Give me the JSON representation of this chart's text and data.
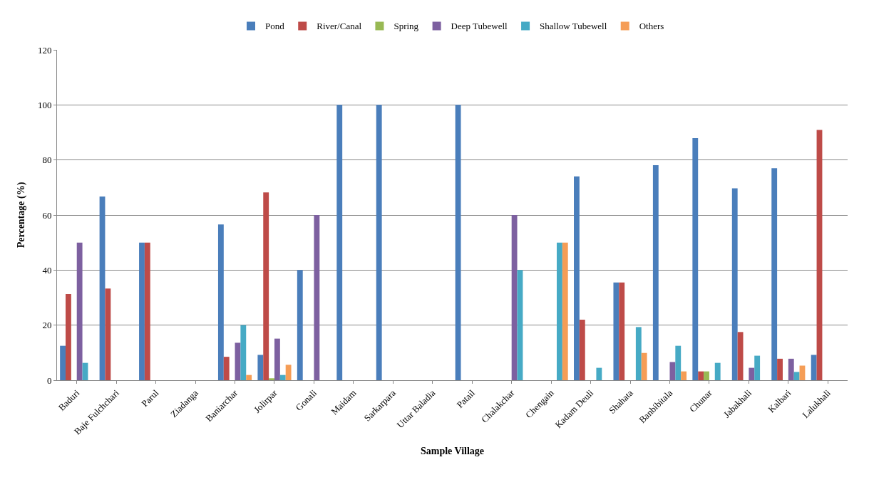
{
  "chart_data": {
    "type": "bar",
    "xlabel": "Sample Village",
    "ylabel": "Percentage (%)",
    "categories": [
      "Baduri",
      "Baje Fulchchari",
      "Parul",
      "Ziadanga",
      "Baniarchar",
      "Jolirpar",
      "Gonali",
      "Maidam",
      "Sarkarpara",
      "Uttar Baladia",
      "Patail",
      "Chalakchar",
      "Chengain",
      "Kadam Deuli",
      "Shahata",
      "Banbibitala",
      "Chunar",
      "Jabakhali",
      "Kalbari",
      "Lalukhali"
    ],
    "series": [
      {
        "name": "Pond",
        "color": "#4a7ebb",
        "values": [
          12.5,
          66.7,
          50,
          0,
          56.6,
          9.2,
          40,
          100,
          100,
          0,
          100,
          0,
          0,
          74,
          35.5,
          78.1,
          87.9,
          69.7,
          77,
          9.2
        ]
      },
      {
        "name": "River/Canal",
        "color": "#be4b48",
        "values": [
          31.3,
          33.3,
          50,
          0,
          8.5,
          68.2,
          0,
          0,
          0,
          0,
          0,
          0,
          0,
          22,
          35.5,
          0,
          3.2,
          17.5,
          7.8,
          90.9
        ]
      },
      {
        "name": "Spring",
        "color": "#98b954",
        "values": [
          0,
          0,
          0,
          0,
          0,
          0.7,
          0,
          0,
          0,
          0,
          0,
          0,
          0,
          0,
          0,
          0,
          3.2,
          0,
          0,
          0
        ]
      },
      {
        "name": "Deep Tubewell",
        "color": "#7d60a0",
        "values": [
          50,
          0,
          0,
          0,
          13.6,
          15.1,
          60,
          0,
          0,
          0,
          0,
          60,
          0,
          0,
          0,
          6.6,
          0,
          4.5,
          7.8,
          0
        ]
      },
      {
        "name": "Shallow Tubewell",
        "color": "#46aac5",
        "values": [
          6.3,
          0,
          0,
          0,
          20,
          1.9,
          0,
          0,
          0,
          0,
          0,
          40,
          50,
          4.5,
          19.3,
          12.5,
          6.3,
          8.9,
          3,
          0
        ]
      },
      {
        "name": "Others",
        "color": "#f59d56",
        "values": [
          0,
          0,
          0,
          0,
          1.9,
          5.6,
          0,
          0,
          0,
          0,
          0,
          0,
          50,
          0,
          9.9,
          3.2,
          0,
          0,
          5.3,
          0
        ]
      }
    ],
    "ylim": [
      0,
      120
    ],
    "yticks": [
      0,
      20,
      40,
      60,
      80,
      100,
      120
    ],
    "grid": "y",
    "legend": "top"
  }
}
